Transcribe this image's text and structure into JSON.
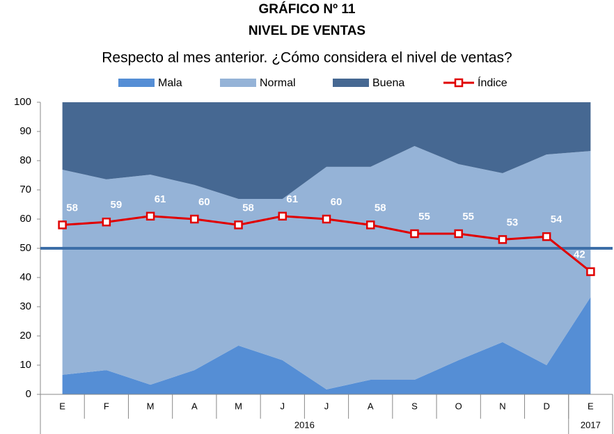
{
  "chart_data": {
    "type": "stacked_area_line",
    "title_lines": [
      "GRÁFICO Nº 11",
      "NIVEL DE VENTAS"
    ],
    "subtitle": "Respecto al mes anterior. ¿Cómo considera el nivel de ventas?",
    "categories": [
      "E",
      "F",
      "M",
      "A",
      "M",
      "J",
      "J",
      "A",
      "S",
      "O",
      "N",
      "D",
      "E"
    ],
    "year_labels": [
      "2016",
      null,
      null,
      null,
      null,
      null,
      null,
      null,
      null,
      null,
      null,
      null,
      "2017"
    ],
    "series": [
      {
        "name": "Mala",
        "color": "#558ed5",
        "values": [
          6.7,
          8.3,
          3.3,
          8.3,
          16.7,
          11.7,
          1.7,
          5,
          5,
          11.7,
          17.9,
          10,
          33.3
        ]
      },
      {
        "name": "Normal",
        "color": "#95b3d7",
        "values": [
          70.2,
          65.3,
          71.9,
          63.4,
          50.2,
          55.2,
          76.2,
          72.9,
          80,
          67.1,
          57.8,
          72.1,
          50
        ]
      },
      {
        "name": "Buena",
        "color": "#466892",
        "values": [
          23.1,
          26.4,
          24.8,
          28.3,
          33.1,
          33.1,
          22.1,
          22.1,
          15,
          21.2,
          24.3,
          17.9,
          16.7
        ]
      }
    ],
    "line_series": {
      "name": "Índice",
      "color": "#e00000",
      "values": [
        58,
        59,
        61,
        60,
        58,
        61,
        60,
        58,
        55,
        55,
        53,
        54,
        42
      ]
    },
    "reference_line": {
      "value": 50,
      "color": "#3d6fa8"
    },
    "ylim": [
      0,
      100
    ],
    "yticks": [
      0,
      10,
      20,
      30,
      40,
      50,
      60,
      70,
      80,
      90,
      100
    ],
    "legend": "top"
  }
}
